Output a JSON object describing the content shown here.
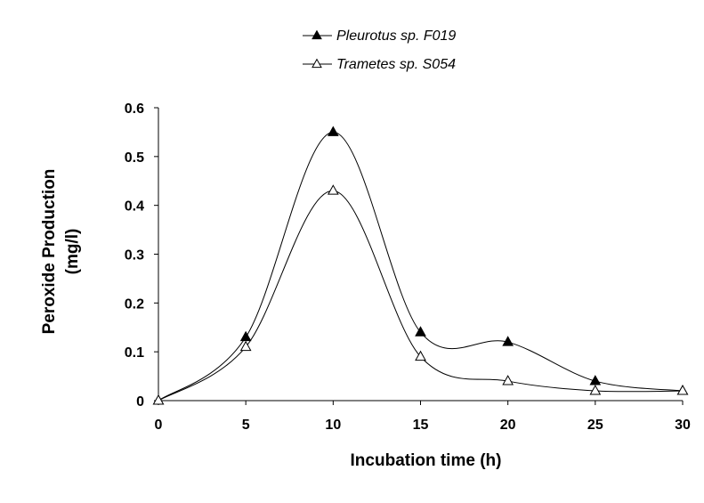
{
  "chart_data": {
    "type": "line",
    "smooth": true,
    "x": [
      0,
      5,
      10,
      15,
      20,
      25,
      30
    ],
    "series": [
      {
        "name": "Pleurotus sp. F019",
        "marker": "filled-triangle",
        "values": [
          0,
          0.13,
          0.55,
          0.14,
          0.12,
          0.04,
          0.02
        ]
      },
      {
        "name": "Trametes sp. S054",
        "marker": "open-triangle",
        "values": [
          0,
          0.11,
          0.43,
          0.09,
          0.04,
          0.02,
          0.02
        ]
      }
    ],
    "xlabel": "Incubation time (h)",
    "ylabel_line1": "Peroxide Production",
    "ylabel_line2": "(mg/l)",
    "xlim": [
      0,
      30
    ],
    "ylim": [
      0,
      0.6
    ],
    "x_ticks": [
      "0",
      "5",
      "10",
      "15",
      "20",
      "25",
      "30"
    ],
    "y_ticks": [
      "0",
      "0.1",
      "0.2",
      "0.3",
      "0.4",
      "0.5",
      "0.6"
    ],
    "grid": false,
    "legend_position": "top-center",
    "colors": {
      "line": "#000000",
      "marker_fill": "#000000",
      "marker_open_fill": "#ffffff"
    }
  }
}
